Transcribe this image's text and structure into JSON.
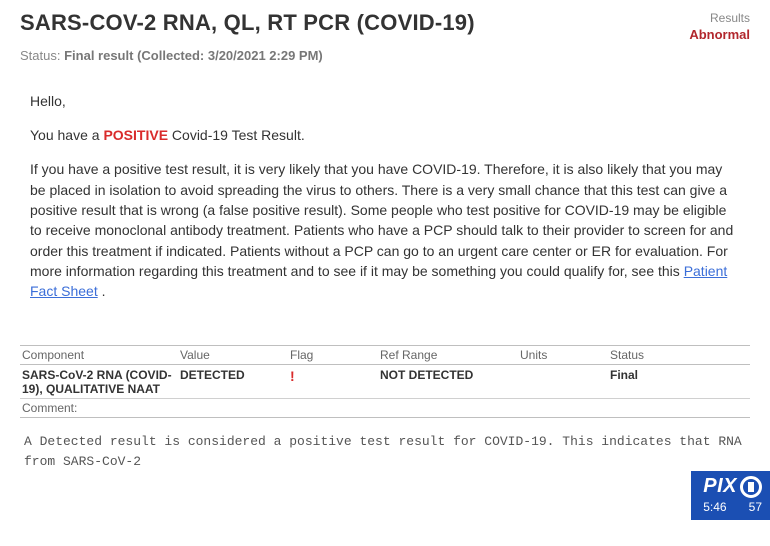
{
  "header": {
    "title": "SARS-COV-2 RNA, QL, RT PCR (COVID-19)",
    "results_label": "Results",
    "results_value": "Abnormal",
    "status_label": "Status:",
    "status_value": "Final result",
    "collected": "(Collected: 3/20/2021  2:29 PM)"
  },
  "message": {
    "greeting": "Hello,",
    "line2_pre": "You have a ",
    "line2_highlight": "POSITIVE",
    "line2_post": " Covid-19 Test Result.",
    "para": "If you have a positive test result, it is very likely that you have COVID-19. Therefore, it is also likely that you may be placed in isolation to avoid spreading the virus to others. There is a very small chance that this test can give a positive result that is wrong (a false positive result). Some people who test positive for COVID-19 may be eligible to receive monoclonal antibody treatment. Patients who have a PCP should talk to their provider to screen for and order this treatment if indicated. Patients without a PCP can go to an urgent care center or ER for evaluation. For more information regarding this treatment and to see if it may be something you could qualify for, see this ",
    "link_text": "Patient Fact Sheet",
    "para_end": " ."
  },
  "table": {
    "headers": {
      "component": "Component",
      "value": "Value",
      "flag": "Flag",
      "ref": "Ref Range",
      "units": "Units",
      "status": "Status"
    },
    "row": {
      "component": "SARS-CoV-2 RNA (COVID-19), QUALITATIVE NAAT",
      "value": "DETECTED",
      "flag": "!",
      "ref": "NOT DETECTED",
      "units": "",
      "status": "Final"
    },
    "comment_label": "Comment:"
  },
  "footer_note": "A Detected result is considered a positive test result for COVID-19.  This indicates that RNA from SARS-CoV-2",
  "badge": {
    "logo": "PIX",
    "time": "5:46",
    "temp": "57"
  },
  "colors": {
    "abnormal": "#b2272d",
    "positive": "#d92b2b",
    "link": "#3b6ed8",
    "badge_bg": "#1b4fb3",
    "text": "#333333",
    "muted": "#888888",
    "border": "#bfbfbf"
  }
}
